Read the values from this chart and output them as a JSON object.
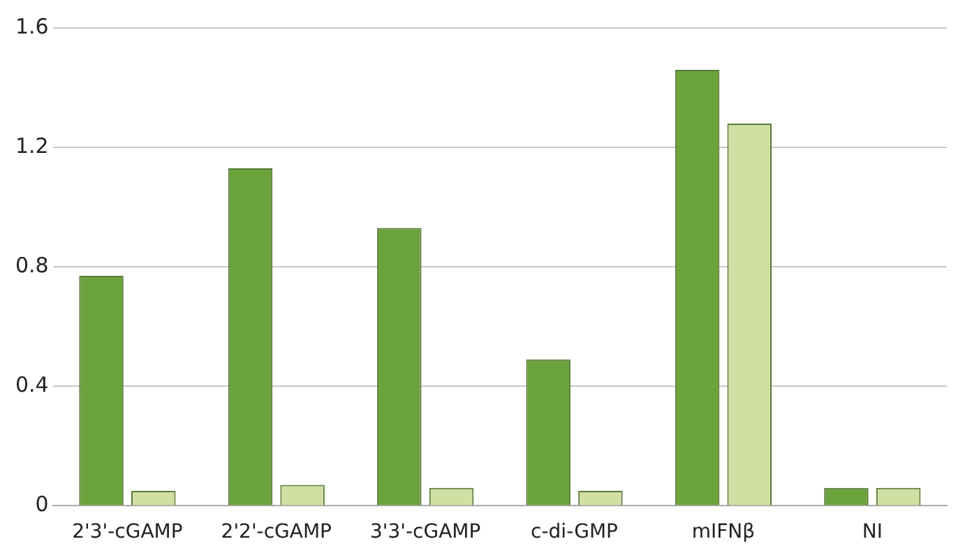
{
  "chart_data": {
    "type": "bar",
    "categories": [
      "2'3'-cGAMP",
      "2'2'-cGAMP",
      "3'3'-cGAMP",
      "c-di-GMP",
      "mIFNβ",
      "NI"
    ],
    "series": [
      {
        "color": "#6aa33c",
        "values": [
          0.77,
          1.13,
          0.93,
          0.49,
          1.46,
          0.06
        ]
      },
      {
        "color": "#cfe0a2",
        "values": [
          0.05,
          0.07,
          0.06,
          0.05,
          1.28,
          0.06
        ]
      }
    ],
    "ylim": [
      0,
      1.6
    ],
    "yticks": [
      0,
      0.4,
      0.8,
      1.2,
      1.6
    ],
    "grid": "y"
  }
}
